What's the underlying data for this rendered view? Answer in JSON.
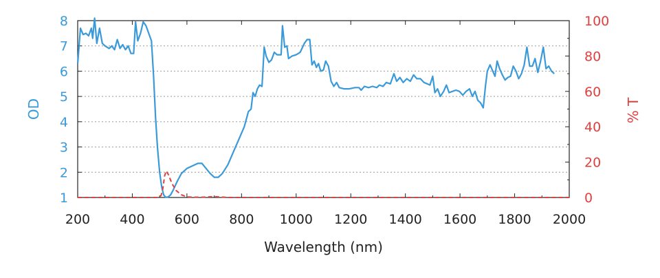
{
  "chart_data": {
    "type": "line",
    "xlabel": "Wavelength (nm)",
    "ylabel_left": "OD",
    "ylabel_right": "% T",
    "xlim": [
      200,
      2000
    ],
    "ylim_left": [
      1,
      8
    ],
    "ylim_right": [
      0,
      100
    ],
    "x_ticks": [
      "200",
      "400",
      "600",
      "800",
      "1000",
      "1200",
      "1400",
      "1600",
      "1800",
      "2000"
    ],
    "y_left_ticks": [
      "8",
      "7",
      "6",
      "5",
      "4",
      "3",
      "2",
      "1"
    ],
    "y_right_ticks": [
      "100",
      "80",
      "60",
      "40",
      "20",
      "0"
    ],
    "colors": {
      "od": "#3a9ad9",
      "transmission": "#e04040",
      "grid": "#999999",
      "axis": "#222222"
    },
    "series": [
      {
        "name": "OD",
        "axis": "left",
        "style": "solid",
        "points": [
          [
            200,
            6.3
          ],
          [
            210,
            7.7
          ],
          [
            220,
            7.45
          ],
          [
            230,
            7.5
          ],
          [
            240,
            7.4
          ],
          [
            250,
            7.7
          ],
          [
            255,
            7.3
          ],
          [
            262,
            8.1
          ],
          [
            270,
            7.1
          ],
          [
            280,
            7.7
          ],
          [
            290,
            7.1
          ],
          [
            300,
            7.0
          ],
          [
            315,
            6.9
          ],
          [
            325,
            7.0
          ],
          [
            335,
            6.85
          ],
          [
            345,
            7.25
          ],
          [
            355,
            6.9
          ],
          [
            365,
            7.05
          ],
          [
            375,
            6.85
          ],
          [
            385,
            7.0
          ],
          [
            395,
            6.7
          ],
          [
            405,
            6.7
          ],
          [
            412,
            7.95
          ],
          [
            420,
            7.2
          ],
          [
            430,
            7.5
          ],
          [
            440,
            7.95
          ],
          [
            450,
            7.8
          ],
          [
            460,
            7.5
          ],
          [
            470,
            7.2
          ],
          [
            478,
            5.8
          ],
          [
            485,
            4.2
          ],
          [
            492,
            3.0
          ],
          [
            500,
            2.0
          ],
          [
            508,
            1.4
          ],
          [
            515,
            1.1
          ],
          [
            522,
            0.95
          ],
          [
            530,
            0.95
          ],
          [
            540,
            1.1
          ],
          [
            550,
            1.3
          ],
          [
            565,
            1.65
          ],
          [
            580,
            1.95
          ],
          [
            600,
            2.15
          ],
          [
            620,
            2.25
          ],
          [
            640,
            2.35
          ],
          [
            655,
            2.35
          ],
          [
            670,
            2.15
          ],
          [
            685,
            1.95
          ],
          [
            700,
            1.8
          ],
          [
            715,
            1.8
          ],
          [
            730,
            1.95
          ],
          [
            750,
            2.3
          ],
          [
            770,
            2.8
          ],
          [
            790,
            3.3
          ],
          [
            810,
            3.8
          ],
          [
            825,
            4.4
          ],
          [
            835,
            4.5
          ],
          [
            842,
            5.15
          ],
          [
            850,
            5.0
          ],
          [
            858,
            5.3
          ],
          [
            866,
            5.45
          ],
          [
            875,
            5.4
          ],
          [
            883,
            6.95
          ],
          [
            890,
            6.6
          ],
          [
            900,
            6.35
          ],
          [
            910,
            6.45
          ],
          [
            920,
            6.75
          ],
          [
            930,
            6.65
          ],
          [
            945,
            6.65
          ],
          [
            950,
            7.8
          ],
          [
            958,
            6.95
          ],
          [
            966,
            7.0
          ],
          [
            972,
            6.5
          ],
          [
            985,
            6.6
          ],
          [
            1000,
            6.65
          ],
          [
            1015,
            6.75
          ],
          [
            1030,
            7.1
          ],
          [
            1040,
            7.25
          ],
          [
            1050,
            7.25
          ],
          [
            1058,
            6.25
          ],
          [
            1066,
            6.4
          ],
          [
            1074,
            6.15
          ],
          [
            1082,
            6.3
          ],
          [
            1090,
            6.0
          ],
          [
            1100,
            6.05
          ],
          [
            1108,
            6.4
          ],
          [
            1118,
            6.2
          ],
          [
            1128,
            5.6
          ],
          [
            1138,
            5.4
          ],
          [
            1148,
            5.55
          ],
          [
            1158,
            5.35
          ],
          [
            1175,
            5.3
          ],
          [
            1195,
            5.3
          ],
          [
            1215,
            5.35
          ],
          [
            1230,
            5.35
          ],
          [
            1238,
            5.25
          ],
          [
            1250,
            5.4
          ],
          [
            1265,
            5.35
          ],
          [
            1280,
            5.4
          ],
          [
            1295,
            5.35
          ],
          [
            1305,
            5.45
          ],
          [
            1318,
            5.4
          ],
          [
            1330,
            5.55
          ],
          [
            1345,
            5.5
          ],
          [
            1358,
            5.9
          ],
          [
            1368,
            5.6
          ],
          [
            1380,
            5.75
          ],
          [
            1392,
            5.55
          ],
          [
            1405,
            5.7
          ],
          [
            1418,
            5.6
          ],
          [
            1430,
            5.85
          ],
          [
            1442,
            5.7
          ],
          [
            1455,
            5.7
          ],
          [
            1468,
            5.55
          ],
          [
            1480,
            5.5
          ],
          [
            1490,
            5.45
          ],
          [
            1500,
            5.8
          ],
          [
            1508,
            5.15
          ],
          [
            1518,
            5.3
          ],
          [
            1528,
            5.0
          ],
          [
            1540,
            5.2
          ],
          [
            1550,
            5.45
          ],
          [
            1560,
            5.15
          ],
          [
            1572,
            5.2
          ],
          [
            1585,
            5.25
          ],
          [
            1598,
            5.2
          ],
          [
            1610,
            5.05
          ],
          [
            1622,
            5.2
          ],
          [
            1635,
            5.3
          ],
          [
            1645,
            5.0
          ],
          [
            1655,
            5.2
          ],
          [
            1665,
            4.85
          ],
          [
            1675,
            4.75
          ],
          [
            1685,
            4.55
          ],
          [
            1693,
            5.4
          ],
          [
            1700,
            6.0
          ],
          [
            1710,
            6.25
          ],
          [
            1720,
            6.0
          ],
          [
            1728,
            5.8
          ],
          [
            1736,
            6.4
          ],
          [
            1745,
            6.1
          ],
          [
            1755,
            5.85
          ],
          [
            1765,
            5.65
          ],
          [
            1775,
            5.75
          ],
          [
            1785,
            5.8
          ],
          [
            1795,
            6.2
          ],
          [
            1805,
            6.0
          ],
          [
            1815,
            5.7
          ],
          [
            1825,
            5.9
          ],
          [
            1835,
            6.25
          ],
          [
            1845,
            6.95
          ],
          [
            1855,
            6.2
          ],
          [
            1865,
            6.2
          ],
          [
            1875,
            6.5
          ],
          [
            1885,
            5.95
          ],
          [
            1895,
            6.4
          ],
          [
            1905,
            6.95
          ],
          [
            1915,
            6.1
          ],
          [
            1925,
            6.2
          ],
          [
            1935,
            6.0
          ],
          [
            1945,
            5.9
          ]
        ]
      },
      {
        "name": "% T",
        "axis": "right",
        "style": "dashed",
        "points": [
          [
            200,
            0
          ],
          [
            490,
            0
          ],
          [
            505,
            1
          ],
          [
            512,
            5
          ],
          [
            518,
            12
          ],
          [
            524,
            15
          ],
          [
            532,
            13
          ],
          [
            545,
            8
          ],
          [
            560,
            4
          ],
          [
            580,
            1.5
          ],
          [
            600,
            0.3
          ],
          [
            650,
            0.1
          ],
          [
            700,
            0.5
          ],
          [
            720,
            0.3
          ],
          [
            750,
            0
          ],
          [
            2000,
            0
          ]
        ]
      }
    ]
  }
}
